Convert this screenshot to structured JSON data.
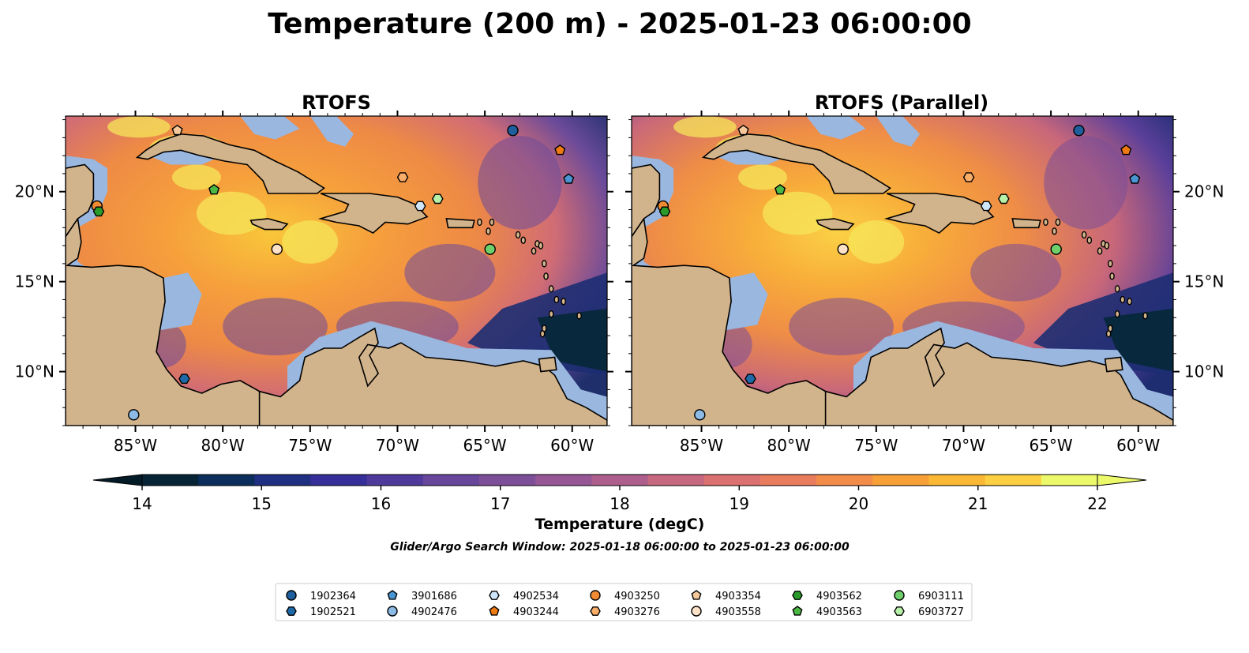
{
  "title": "Temperature (200 m) - 2025-01-23 06:00:00",
  "panels": [
    {
      "title": "RTOFS",
      "variant": "base"
    },
    {
      "title": "RTOFS (Parallel)",
      "variant": "parallel"
    }
  ],
  "map_extent": {
    "lon_min": -89,
    "lon_max": -58,
    "lat_min": 7,
    "lat_max": 24.2
  },
  "lon_ticks": [
    {
      "lon": -85,
      "label": "85°W"
    },
    {
      "lon": -80,
      "label": "80°W"
    },
    {
      "lon": -75,
      "label": "75°W"
    },
    {
      "lon": -70,
      "label": "70°W"
    },
    {
      "lon": -65,
      "label": "65°W"
    },
    {
      "lon": -60,
      "label": "60°W"
    }
  ],
  "lat_ticks": [
    {
      "lat": 20,
      "label": "20°N"
    },
    {
      "lat": 15,
      "label": "15°N"
    },
    {
      "lat": 10,
      "label": "10°N"
    }
  ],
  "colorbar": {
    "label": "Temperature (degC)",
    "min": 14,
    "max": 22,
    "ticks": [
      "14",
      "15",
      "16",
      "17",
      "18",
      "19",
      "20",
      "21",
      "22"
    ],
    "colors": [
      "#062436",
      "#0c2e5c",
      "#1f2f82",
      "#362f9a",
      "#4f3a9c",
      "#67469c",
      "#7e4f99",
      "#975796",
      "#ae5e8c",
      "#c66880",
      "#db7170",
      "#ea7c5e",
      "#f38c48",
      "#f8a038",
      "#fbb835",
      "#fcd040",
      "#ebf96a"
    ],
    "under_color": "#031b26",
    "over_color": "#ebf96a"
  },
  "search_window": "Glider/Argo Search Window: 2025-01-18 06:00:00 to 2025-01-23 06:00:00",
  "colors": {
    "land": "#d2b48c",
    "shelf": "#9ab7e0",
    "coast": "#000000"
  },
  "floats": [
    {
      "id": "1902364",
      "marker": "circle",
      "color": "#1f5f9e",
      "lon": -63.4,
      "lat": 23.4
    },
    {
      "id": "1902521",
      "marker": "hexagon",
      "color": "#1e6aa8",
      "lon": -82.2,
      "lat": 9.6
    },
    {
      "id": "3901686",
      "marker": "pentagon",
      "color": "#4a94d2",
      "lon": -60.2,
      "lat": 20.7
    },
    {
      "id": "4902476",
      "marker": "circle",
      "color": "#8cbbe5",
      "lon": -85.1,
      "lat": 7.6
    },
    {
      "id": "4902534",
      "marker": "hexagon",
      "color": "#cfe6fa",
      "lon": -68.7,
      "lat": 19.2
    },
    {
      "id": "4903244",
      "marker": "pentagon",
      "color": "#f07a12",
      "lon": -60.7,
      "lat": 22.3
    },
    {
      "id": "4903250",
      "marker": "circle",
      "color": "#f08b33",
      "lon": -87.2,
      "lat": 19.2
    },
    {
      "id": "4903276",
      "marker": "hexagon",
      "color": "#f8ad69",
      "lon": -69.7,
      "lat": 20.8
    },
    {
      "id": "4903354",
      "marker": "pentagon",
      "color": "#f6c89a",
      "lon": -82.6,
      "lat": 23.4
    },
    {
      "id": "4903558",
      "marker": "circle",
      "color": "#fde2c8",
      "lon": -76.9,
      "lat": 16.8
    },
    {
      "id": "4903562",
      "marker": "hexagon",
      "color": "#2a9a2a",
      "lon": -87.1,
      "lat": 18.9
    },
    {
      "id": "4903563",
      "marker": "pentagon",
      "color": "#4cb844",
      "lon": -80.5,
      "lat": 20.1
    },
    {
      "id": "6903111",
      "marker": "circle",
      "color": "#6fcf6a",
      "lon": -64.7,
      "lat": 16.8
    },
    {
      "id": "6903727",
      "marker": "hexagon",
      "color": "#b7f0a8",
      "lon": -67.7,
      "lat": 19.6
    }
  ]
}
